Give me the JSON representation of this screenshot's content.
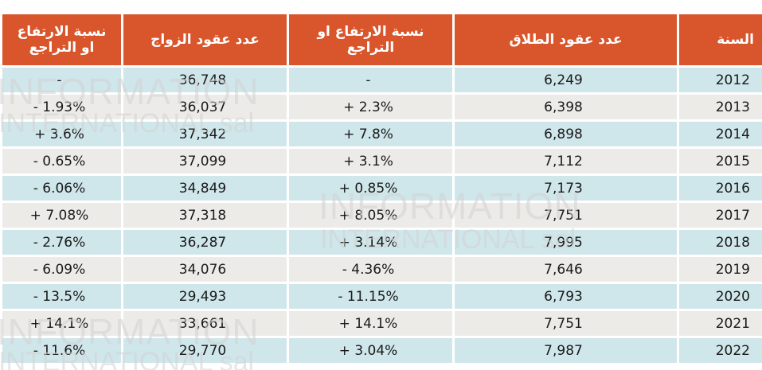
{
  "headers": {
    "year": "السنة",
    "divorce": "عدد عقود الطلاق",
    "divorce_change": "نسبة الارتفاع او التراجع",
    "marriage": "عدد عقود الزواج",
    "marriage_change": "نسبة الارتفاع او التراجع"
  },
  "rows": [
    {
      "year": "2012",
      "divorce": "6,249",
      "divorce_change": "-",
      "marriage": "36,748",
      "marriage_change": "-"
    },
    {
      "year": "2013",
      "divorce": "6,398",
      "divorce_change": "+ 2.3%",
      "marriage": "36,037",
      "marriage_change": "- 1.93%"
    },
    {
      "year": "2014",
      "divorce": "6,898",
      "divorce_change": "+ 7.8%",
      "marriage": "37,342",
      "marriage_change": "+ 3.6%"
    },
    {
      "year": "2015",
      "divorce": "7,112",
      "divorce_change": "+ 3.1%",
      "marriage": "37,099",
      "marriage_change": "- 0.65%"
    },
    {
      "year": "2016",
      "divorce": "7,173",
      "divorce_change": "+ 0.85%",
      "marriage": "34,849",
      "marriage_change": "- 6.06%"
    },
    {
      "year": "2017",
      "divorce": "7,751",
      "divorce_change": "+ 8.05%",
      "marriage": "37,318",
      "marriage_change": "+ 7.08%"
    },
    {
      "year": "2018",
      "divorce": "7,995",
      "divorce_change": "+ 3.14%",
      "marriage": "36,287",
      "marriage_change": "- 2.76%"
    },
    {
      "year": "2019",
      "divorce": "7,646",
      "divorce_change": "- 4.36%",
      "marriage": "34,076",
      "marriage_change": "- 6.09%"
    },
    {
      "year": "2020",
      "divorce": "6,793",
      "divorce_change": "- 11.15%",
      "marriage": "29,493",
      "marriage_change": "- 13.5%"
    },
    {
      "year": "2021",
      "divorce": "7,751",
      "divorce_change": "+ 14.1%",
      "marriage": "33,661",
      "marriage_change": "+ 14.1%"
    },
    {
      "year": "2022",
      "divorce": "7,987",
      "divorce_change": "+ 3.04%",
      "marriage": "29,770",
      "marriage_change": "- 11.6%"
    }
  ],
  "watermark": {
    "line1": "INFORMATION",
    "line2": "INTERNATIONAL sal"
  },
  "colors": {
    "header_bg": "#d9552b",
    "row_blue": "#cfe6ea",
    "row_gray": "#edebe8"
  }
}
